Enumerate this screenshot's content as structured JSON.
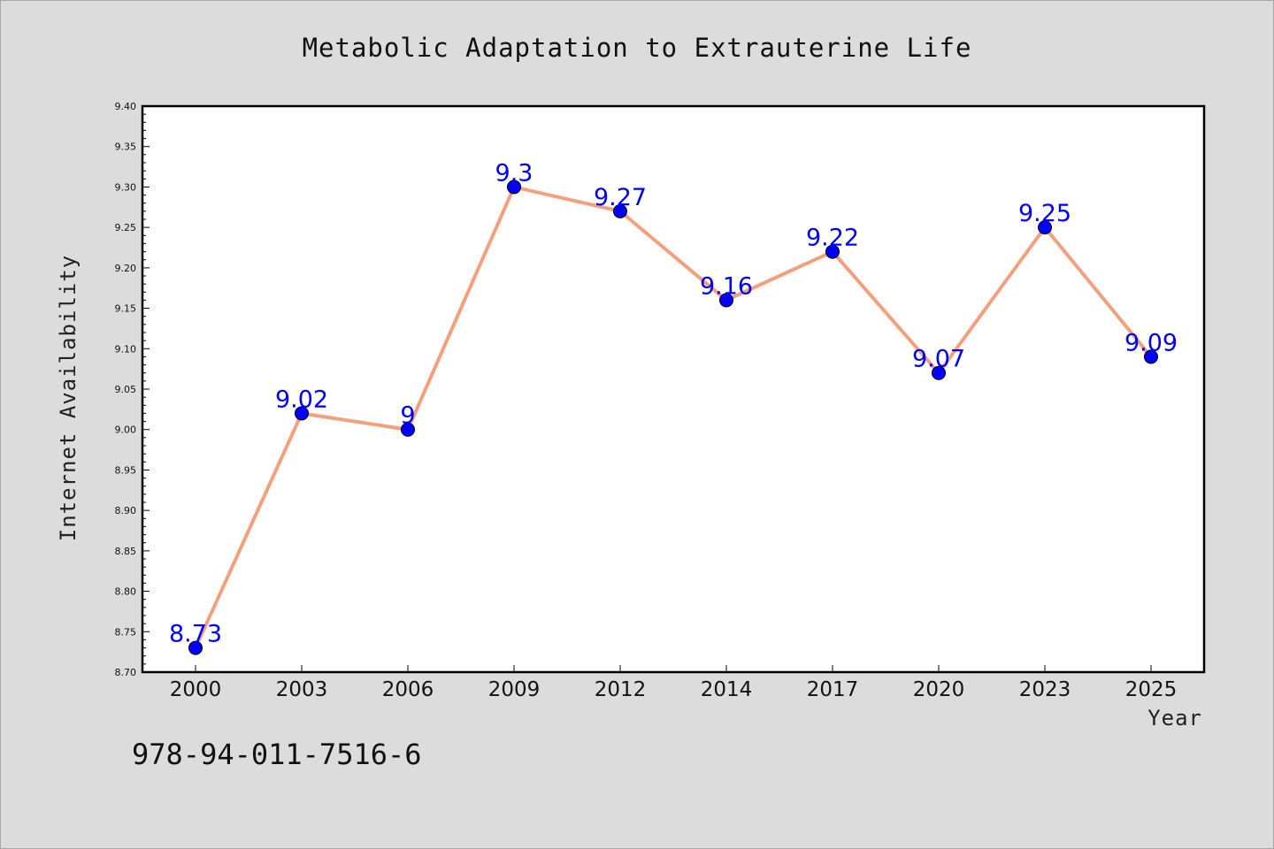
{
  "chart_data": {
    "type": "line",
    "title": "Metabolic Adaptation to Extrauterine Life",
    "xlabel": "Year",
    "ylabel": "Internet Availability",
    "categories": [
      "2000",
      "2003",
      "2006",
      "2009",
      "2012",
      "2014",
      "2017",
      "2020",
      "2023",
      "2025"
    ],
    "series": [
      {
        "values": [
          8.73,
          9.02,
          9.0,
          9.3,
          9.27,
          9.16,
          9.22,
          9.07,
          9.25,
          9.09
        ],
        "labels": [
          "8.73",
          "9.02",
          "9",
          "9.3",
          "9.27",
          "9.16",
          "9.22",
          "9.07",
          "9.25",
          "9.09"
        ]
      }
    ],
    "ylim": [
      8.7,
      9.4
    ],
    "yticks": [
      "8.70",
      "8.75",
      "8.80",
      "8.85",
      "8.90",
      "8.95",
      "9.00",
      "9.05",
      "9.10",
      "9.15",
      "9.20",
      "9.25",
      "9.30",
      "9.35",
      "9.40"
    ],
    "grid": false,
    "legend": "none",
    "colors": {
      "line": "#f4a07c",
      "marker": "#0000ff",
      "data_label": "#0000ff",
      "plot_background": "#ffffff",
      "figure_background": "#dcdcdc"
    }
  },
  "footer": {
    "text": "978-94-011-7516-6"
  }
}
